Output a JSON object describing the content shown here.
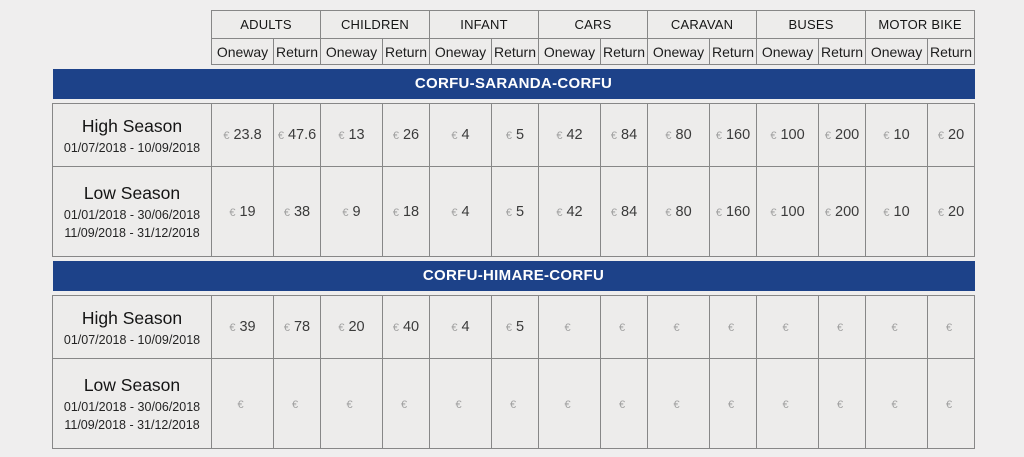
{
  "colors": {
    "page_bg": "#efeeee",
    "cell_bg": "#edeceb",
    "border": "#878787",
    "banner_bg": "#1d4289",
    "banner_text": "#ffffff",
    "euro_symbol": "#a0a0a0",
    "price_value": "#3b3b3b"
  },
  "currency_symbol": "€",
  "header": {
    "categories": [
      "ADULTS",
      "CHILDREN",
      "INFANT",
      "CARS",
      "CARAVAN",
      "BUSES",
      "MOTOR BIKE"
    ],
    "subheaders": {
      "oneway": "Oneway",
      "return": "Return"
    }
  },
  "chart_data": {
    "type": "table",
    "title": "Ferry fares by route, season and vehicle/passenger type (EUR)",
    "columns": [
      "ADULTS Oneway",
      "ADULTS Return",
      "CHILDREN Oneway",
      "CHILDREN Return",
      "INFANT Oneway",
      "INFANT Return",
      "CARS Oneway",
      "CARS Return",
      "CARAVAN Oneway",
      "CARAVAN Return",
      "BUSES Oneway",
      "BUSES Return",
      "MOTOR BIKE Oneway",
      "MOTOR BIKE Return"
    ],
    "rows": [
      {
        "route": "CORFU-SARANDA-CORFU",
        "season": "High Season",
        "values": [
          23.8,
          47.6,
          13,
          26,
          4,
          5,
          42,
          84,
          80,
          160,
          100,
          200,
          10,
          20
        ]
      },
      {
        "route": "CORFU-SARANDA-CORFU",
        "season": "Low Season",
        "values": [
          19,
          38,
          9,
          18,
          4,
          5,
          42,
          84,
          80,
          160,
          100,
          200,
          10,
          20
        ]
      },
      {
        "route": "CORFU-HIMARE-CORFU",
        "season": "High Season",
        "values": [
          39,
          78,
          20,
          40,
          4,
          5,
          null,
          null,
          null,
          null,
          null,
          null,
          null,
          null
        ]
      },
      {
        "route": "CORFU-HIMARE-CORFU",
        "season": "Low Season",
        "values": [
          null,
          null,
          null,
          null,
          null,
          null,
          null,
          null,
          null,
          null,
          null,
          null,
          null,
          null
        ]
      }
    ]
  },
  "sections": [
    {
      "route": "CORFU-SARANDA-CORFU",
      "rows": [
        {
          "season": "High Season",
          "dates": [
            "01/07/2018 - 10/09/2018"
          ],
          "values": [
            "23.8",
            "47.6",
            "13",
            "26",
            "4",
            "5",
            "42",
            "84",
            "80",
            "160",
            "100",
            "200",
            "10",
            "20"
          ]
        },
        {
          "season": "Low Season",
          "dates": [
            "01/01/2018 - 30/06/2018",
            "11/09/2018 - 31/12/2018"
          ],
          "values": [
            "19",
            "38",
            "9",
            "18",
            "4",
            "5",
            "42",
            "84",
            "80",
            "160",
            "100",
            "200",
            "10",
            "20"
          ]
        }
      ]
    },
    {
      "route": "CORFU-HIMARE-CORFU",
      "rows": [
        {
          "season": "High Season",
          "dates": [
            "01/07/2018 - 10/09/2018"
          ],
          "values": [
            "39",
            "78",
            "20",
            "40",
            "4",
            "5",
            "",
            "",
            "",
            "",
            "",
            "",
            "",
            ""
          ]
        },
        {
          "season": "Low Season",
          "dates": [
            "01/01/2018 - 30/06/2018",
            "11/09/2018 - 31/12/2018"
          ],
          "values": [
            "",
            "",
            "",
            "",
            "",
            "",
            "",
            "",
            "",
            "",
            "",
            "",
            "",
            ""
          ]
        }
      ]
    }
  ]
}
